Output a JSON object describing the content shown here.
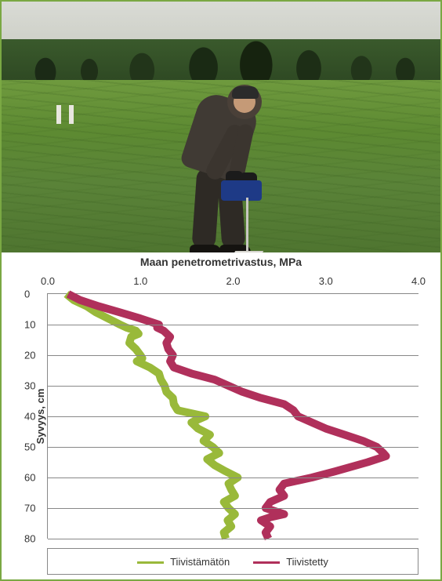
{
  "photo": {
    "description": "Person in dark jacket using penetrometer in green crop field with treeline and overcast sky"
  },
  "chart": {
    "type": "line",
    "title": "Maan penetrometrivastus, MPa",
    "x": {
      "label": "",
      "min": 0.0,
      "max": 4.0,
      "ticks": [
        0.0,
        1.0,
        2.0,
        3.0,
        4.0
      ],
      "tick_labels": [
        "0.0",
        "1.0",
        "2.0",
        "3.0",
        "4.0"
      ],
      "position": "top",
      "fontsize": 13
    },
    "y": {
      "label": "Syvyys, cm",
      "min": 0,
      "max": 80,
      "ticks": [
        0,
        10,
        20,
        30,
        40,
        50,
        60,
        70,
        80
      ],
      "tick_labels": [
        "0",
        "10",
        "20",
        "30",
        "40",
        "50",
        "60",
        "70",
        "80"
      ],
      "inverted": true,
      "grid": true,
      "fontsize": 13,
      "label_fontsize": 13,
      "label_fontweight": "bold"
    },
    "grid_color": "#888888",
    "background_color": "#ffffff",
    "line_width": 2.5,
    "series": [
      {
        "name": "Tiivistämätön",
        "color": "#99b93a",
        "points": [
          [
            0.2,
            0
          ],
          [
            0.28,
            2
          ],
          [
            0.42,
            4
          ],
          [
            0.52,
            6
          ],
          [
            0.65,
            8
          ],
          [
            0.78,
            10
          ],
          [
            0.85,
            11
          ],
          [
            0.95,
            12
          ],
          [
            0.98,
            13
          ],
          [
            0.9,
            14
          ],
          [
            0.88,
            16
          ],
          [
            0.95,
            18
          ],
          [
            1.0,
            20
          ],
          [
            1.02,
            21
          ],
          [
            0.96,
            22
          ],
          [
            1.1,
            24
          ],
          [
            1.2,
            26
          ],
          [
            1.22,
            28
          ],
          [
            1.26,
            30
          ],
          [
            1.28,
            32
          ],
          [
            1.35,
            34
          ],
          [
            1.36,
            36
          ],
          [
            1.4,
            38
          ],
          [
            1.7,
            40
          ],
          [
            1.55,
            42
          ],
          [
            1.62,
            44
          ],
          [
            1.75,
            46
          ],
          [
            1.68,
            48
          ],
          [
            1.78,
            50
          ],
          [
            1.85,
            52
          ],
          [
            1.72,
            54
          ],
          [
            1.8,
            56
          ],
          [
            1.92,
            58
          ],
          [
            2.05,
            60
          ],
          [
            1.95,
            62
          ],
          [
            1.98,
            64
          ],
          [
            2.02,
            66
          ],
          [
            1.9,
            68
          ],
          [
            1.95,
            70
          ],
          [
            2.02,
            72
          ],
          [
            1.94,
            74
          ],
          [
            1.98,
            76
          ],
          [
            1.9,
            78
          ],
          [
            1.92,
            80
          ]
        ]
      },
      {
        "name": "Tiivistetty",
        "color": "#b0305b",
        "points": [
          [
            0.22,
            0
          ],
          [
            0.35,
            2
          ],
          [
            0.55,
            4
          ],
          [
            0.78,
            6
          ],
          [
            1.0,
            8
          ],
          [
            1.2,
            10
          ],
          [
            1.18,
            11
          ],
          [
            1.25,
            12
          ],
          [
            1.32,
            14
          ],
          [
            1.28,
            16
          ],
          [
            1.3,
            18
          ],
          [
            1.35,
            20
          ],
          [
            1.32,
            22
          ],
          [
            1.36,
            24
          ],
          [
            1.55,
            26
          ],
          [
            1.8,
            28
          ],
          [
            1.95,
            30
          ],
          [
            2.1,
            32
          ],
          [
            2.3,
            34
          ],
          [
            2.55,
            36
          ],
          [
            2.65,
            38
          ],
          [
            2.7,
            40
          ],
          [
            2.85,
            42
          ],
          [
            3.0,
            44
          ],
          [
            3.2,
            46
          ],
          [
            3.4,
            48
          ],
          [
            3.55,
            50
          ],
          [
            3.62,
            52
          ],
          [
            3.65,
            53
          ],
          [
            3.45,
            55
          ],
          [
            3.1,
            58
          ],
          [
            2.85,
            60
          ],
          [
            2.55,
            62
          ],
          [
            2.5,
            64
          ],
          [
            2.55,
            66
          ],
          [
            2.4,
            68
          ],
          [
            2.35,
            70
          ],
          [
            2.55,
            72
          ],
          [
            2.4,
            73
          ],
          [
            2.3,
            74
          ],
          [
            2.4,
            76
          ],
          [
            2.35,
            78
          ],
          [
            2.38,
            80
          ]
        ]
      }
    ],
    "legend": {
      "position": "bottom",
      "border_color": "#888888",
      "items": [
        "Tiivistämätön",
        "Tiivistetty"
      ]
    }
  },
  "frame_border_color": "#7aa843"
}
